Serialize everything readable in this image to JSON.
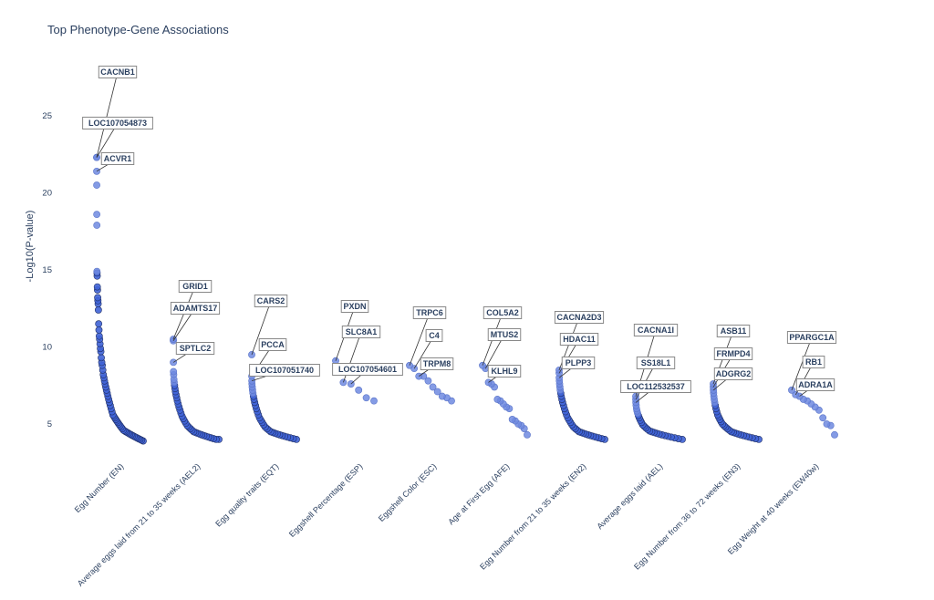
{
  "chart_data": {
    "type": "scatter",
    "title": "Top Phenotype-Gene Associations",
    "xlabel": "",
    "ylabel": "-Log10(P-value)",
    "yticks": [
      5,
      10,
      15,
      20,
      25
    ],
    "ylim": [
      3.2,
      29
    ],
    "grid": false,
    "marker_color": "#4169e1",
    "categories": [
      {
        "name": "Egg Number (EN)",
        "values": [
          22.3,
          22.3,
          21.4,
          20.5,
          18.6,
          17.9,
          14.9,
          14.8,
          14.6,
          13.9,
          13.7,
          13.2,
          13.0,
          12.8,
          12.4,
          11.5,
          11.1,
          10.7,
          10.5,
          10.2,
          9.9,
          9.7,
          9.3,
          9.0,
          8.8,
          8.5,
          8.2,
          8.0,
          7.8,
          7.6,
          7.4,
          7.2,
          7.0,
          6.8,
          6.6,
          6.4,
          6.2,
          6.0,
          5.8,
          5.6,
          5.5,
          5.4,
          5.3,
          5.2,
          5.1,
          5.0,
          4.9,
          4.8,
          4.7,
          4.6,
          4.55,
          4.5,
          4.45,
          4.4,
          4.35,
          4.3,
          4.25,
          4.2,
          4.15,
          4.1,
          4.05,
          4.0,
          3.95,
          3.9
        ]
      },
      {
        "name": "Average eggs laid from 21 to 35 weeks (AEL2)",
        "values": [
          10.5,
          10.4,
          9.0,
          8.4,
          8.2,
          7.9,
          7.7,
          7.5,
          7.3,
          7.1,
          6.9,
          6.7,
          6.5,
          6.3,
          6.1,
          5.9,
          5.7,
          5.5,
          5.35,
          5.2,
          5.05,
          4.9,
          4.8,
          4.7,
          4.6,
          4.5,
          4.45,
          4.4,
          4.35,
          4.3,
          4.25,
          4.2,
          4.15,
          4.1,
          4.05,
          4.0,
          4.0
        ]
      },
      {
        "name": "Egg quality traits (EQT)",
        "values": [
          9.5,
          8.1,
          7.8,
          7.6,
          7.4,
          7.2,
          7.0,
          6.8,
          6.6,
          6.4,
          6.2,
          6.0,
          5.8,
          5.6,
          5.4,
          5.25,
          5.1,
          4.95,
          4.8,
          4.7,
          4.6,
          4.5,
          4.45,
          4.4,
          4.35,
          4.3,
          4.25,
          4.2,
          4.15,
          4.1,
          4.05,
          4.0
        ]
      },
      {
        "name": "Eggshell Percentage (ESP)",
        "values": [
          9.1,
          7.7,
          7.6,
          7.2,
          6.7,
          6.5
        ]
      },
      {
        "name": "Eggshell Color (ESC)",
        "values": [
          8.8,
          8.6,
          8.1,
          8.1,
          7.8,
          7.4,
          7.1,
          6.8,
          6.7,
          6.5
        ]
      },
      {
        "name": "Age at First Egg (AFE)",
        "values": [
          8.8,
          8.6,
          7.7,
          7.6,
          7.4,
          6.6,
          6.5,
          6.3,
          6.1,
          6.0,
          5.3,
          5.2,
          5.0,
          4.9,
          4.7,
          4.3
        ]
      },
      {
        "name": "Egg Number from 21 to 35 weeks (EN2)",
        "values": [
          8.5,
          8.3,
          8.0,
          7.8,
          7.6,
          7.4,
          7.2,
          7.0,
          6.8,
          6.6,
          6.4,
          6.2,
          6.0,
          5.8,
          5.6,
          5.4,
          5.25,
          5.1,
          4.95,
          4.8,
          4.7,
          4.6,
          4.5,
          4.45,
          4.4,
          4.35,
          4.3,
          4.25,
          4.2,
          4.15,
          4.1,
          4.05,
          4.0
        ]
      },
      {
        "name": "Average eggs laid (AEL)",
        "values": [
          6.8,
          6.6,
          6.4,
          6.2,
          6.0,
          5.85,
          5.7,
          5.55,
          5.4,
          5.25,
          5.1,
          4.95,
          4.85,
          4.75,
          4.65,
          4.55,
          4.5,
          4.45,
          4.4,
          4.35,
          4.3,
          4.25,
          4.2,
          4.15,
          4.1,
          4.05,
          4.0
        ]
      },
      {
        "name": "Egg Number from 36 to 72 weeks (EN3)",
        "values": [
          7.6,
          7.4,
          7.2,
          7.0,
          6.8,
          6.6,
          6.4,
          6.2,
          6.0,
          5.8,
          5.6,
          5.45,
          5.3,
          5.15,
          5.0,
          4.9,
          4.8,
          4.7,
          4.6,
          4.5,
          4.45,
          4.4,
          4.35,
          4.3,
          4.25,
          4.2,
          4.15,
          4.1,
          4.05,
          4.0
        ]
      },
      {
        "name": "Egg Weight at 40 weeks (EW40w)",
        "values": [
          7.2,
          6.9,
          6.8,
          6.6,
          6.5,
          6.3,
          6.1,
          5.9,
          5.4,
          5.0,
          4.9,
          4.3
        ]
      }
    ],
    "annotations": [
      {
        "gene": "CACNB1",
        "category": 0,
        "rank": 0
      },
      {
        "gene": "LOC107054873",
        "category": 0,
        "rank": 1
      },
      {
        "gene": "ACVR1",
        "category": 0,
        "rank": 2
      },
      {
        "gene": "GRID1",
        "category": 1,
        "rank": 0
      },
      {
        "gene": "ADAMTS17",
        "category": 1,
        "rank": 1
      },
      {
        "gene": "SPTLC2",
        "category": 1,
        "rank": 2
      },
      {
        "gene": "CARS2",
        "category": 2,
        "rank": 0
      },
      {
        "gene": "PCCA",
        "category": 2,
        "rank": 1
      },
      {
        "gene": "LOC107051740",
        "category": 2,
        "rank": 2
      },
      {
        "gene": "PXDN",
        "category": 3,
        "rank": 0
      },
      {
        "gene": "SLC8A1",
        "category": 3,
        "rank": 1
      },
      {
        "gene": "LOC107054601",
        "category": 3,
        "rank": 2
      },
      {
        "gene": "TRPC6",
        "category": 4,
        "rank": 0
      },
      {
        "gene": "C4",
        "category": 4,
        "rank": 1
      },
      {
        "gene": "TRPM8",
        "category": 4,
        "rank": 2
      },
      {
        "gene": "COL5A2",
        "category": 5,
        "rank": 0
      },
      {
        "gene": "MTUS2",
        "category": 5,
        "rank": 1
      },
      {
        "gene": "KLHL9",
        "category": 5,
        "rank": 2
      },
      {
        "gene": "CACNA2D3",
        "category": 6,
        "rank": 0
      },
      {
        "gene": "HDAC11",
        "category": 6,
        "rank": 1
      },
      {
        "gene": "PLPP3",
        "category": 6,
        "rank": 2
      },
      {
        "gene": "CACNA1I",
        "category": 7,
        "rank": 0
      },
      {
        "gene": "SS18L1",
        "category": 7,
        "rank": 1
      },
      {
        "gene": "LOC112532537",
        "category": 7,
        "rank": 2
      },
      {
        "gene": "ASB11",
        "category": 8,
        "rank": 0
      },
      {
        "gene": "FRMPD4",
        "category": 8,
        "rank": 1
      },
      {
        "gene": "ADGRG2",
        "category": 8,
        "rank": 2
      },
      {
        "gene": "PPARGC1A",
        "category": 9,
        "rank": 0
      },
      {
        "gene": "RB1",
        "category": 9,
        "rank": 1
      },
      {
        "gene": "ADRA1A",
        "category": 9,
        "rank": 2
      }
    ]
  }
}
